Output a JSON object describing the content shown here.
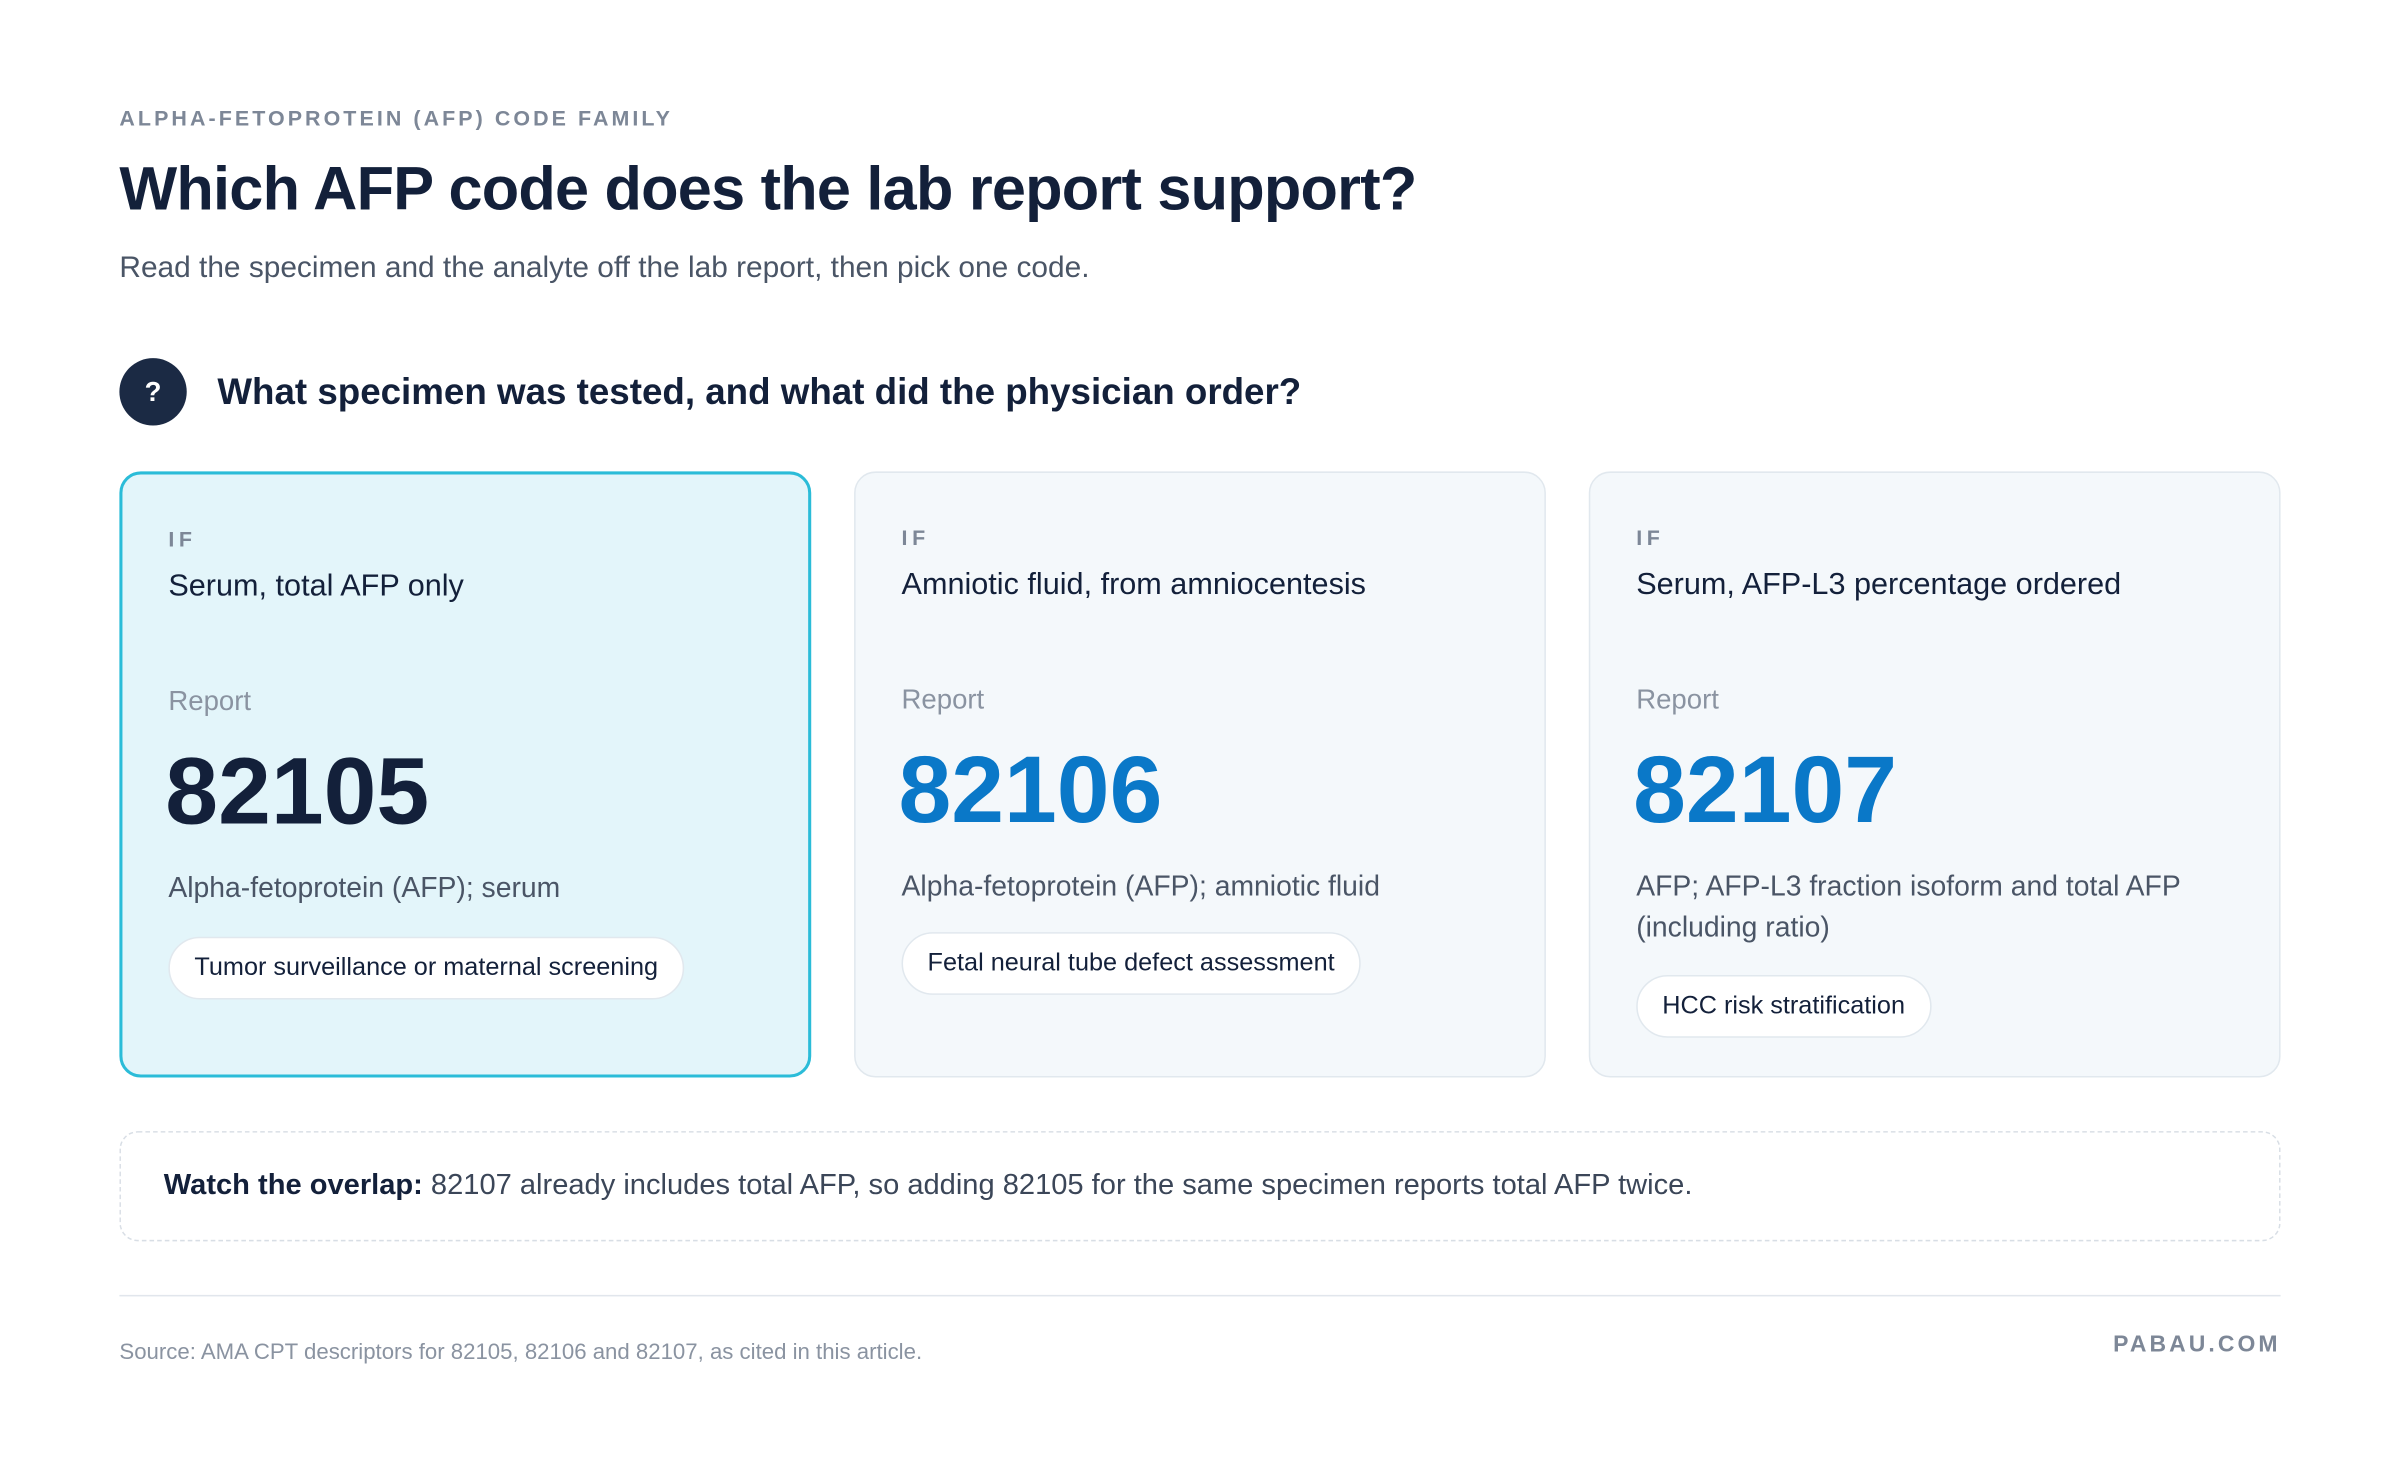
{
  "header": {
    "eyebrow": "ALPHA-FETOPROTEIN (AFP) CODE FAMILY",
    "title": "Which AFP code does the lab report support?",
    "subtitle": "Read the specimen and the analyte off the lab report, then pick one code."
  },
  "question": {
    "icon": "?",
    "text": "What specimen was tested, and what did the physician order?"
  },
  "cards": [
    {
      "if_label": "IF",
      "condition": "Serum, total AFP only",
      "report_label": "Report",
      "code": "82105",
      "description": "Alpha-fetoprotein (AFP); serum",
      "tag": "Tumor surveillance or maternal screening"
    },
    {
      "if_label": "IF",
      "condition": "Amniotic fluid, from amniocentesis",
      "report_label": "Report",
      "code": "82106",
      "description": "Alpha-fetoprotein (AFP); amniotic fluid",
      "tag": "Fetal neural tube defect assessment"
    },
    {
      "if_label": "IF",
      "condition": "Serum, AFP-L3 percentage ordered",
      "report_label": "Report",
      "code": "82107",
      "description": "AFP; AFP-L3 fraction isoform and total AFP (including ratio)",
      "tag": "HCC risk stratification"
    }
  ],
  "note": {
    "label": "Watch the overlap:",
    "text": "82107 already includes total AFP, so adding 82105 for the same specimen reports total AFP twice."
  },
  "footer": {
    "source": "Source: AMA CPT descriptors for 82105, 82106 and 82107, as cited in this article.",
    "brand": "PABAU.COM"
  }
}
